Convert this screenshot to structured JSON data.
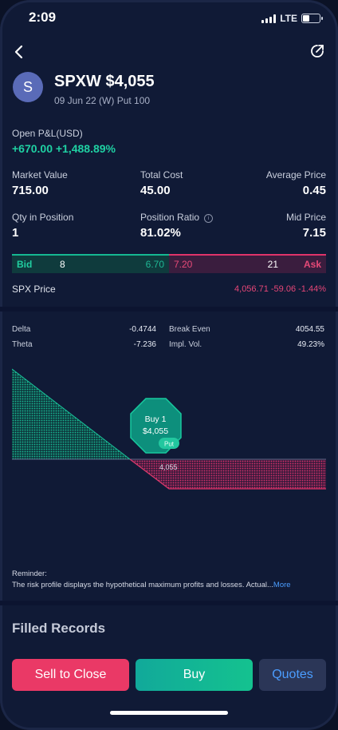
{
  "status": {
    "time": "2:09",
    "network": "LTE"
  },
  "header": {
    "avatar_letter": "S",
    "title": "SPXW $4,055",
    "subtitle": "09 Jun 22 (W) Put 100"
  },
  "pnl": {
    "label": "Open P&L(USD)",
    "value": "+670.00 +1,488.89%"
  },
  "stats": {
    "market_value_label": "Market Value",
    "market_value": "715.00",
    "total_cost_label": "Total Cost",
    "total_cost": "45.00",
    "average_price_label": "Average Price",
    "average_price": "0.45",
    "qty_label": "Qty in Position",
    "qty": "1",
    "position_ratio_label": "Position Ratio",
    "position_ratio": "81.02%",
    "mid_price_label": "Mid Price",
    "mid_price": "7.15"
  },
  "quote": {
    "bid_label": "Bid",
    "bid_size": "8",
    "bid_price": "6.70",
    "ask_price": "7.20",
    "ask_size": "21",
    "ask_label": "Ask"
  },
  "spx": {
    "label": "SPX Price",
    "value": "4,056.71 -59.06 -1.44%"
  },
  "greeks": {
    "delta_label": "Delta",
    "delta": "-0.4744",
    "break_even_label": "Break Even",
    "break_even": "4054.55",
    "theta_label": "Theta",
    "theta": "-7.236",
    "iv_label": "Impl. Vol.",
    "iv": "49.23%"
  },
  "risk_chart": {
    "badge_line1": "Buy 1",
    "badge_line2": "$4,055",
    "badge_tag": "Put",
    "strike_label": "4,055"
  },
  "reminder": {
    "title": "Reminder:",
    "text": "The risk profile displays the hypothetical maximum profits and losses. Actual...",
    "more": "More"
  },
  "filled_records": "Filled Records",
  "actions": {
    "sell": "Sell to Close",
    "buy": "Buy",
    "quotes": "Quotes"
  },
  "colors": {
    "profit": "#1fd1a3",
    "loss": "#e64677",
    "accent": "#4b9dff"
  }
}
